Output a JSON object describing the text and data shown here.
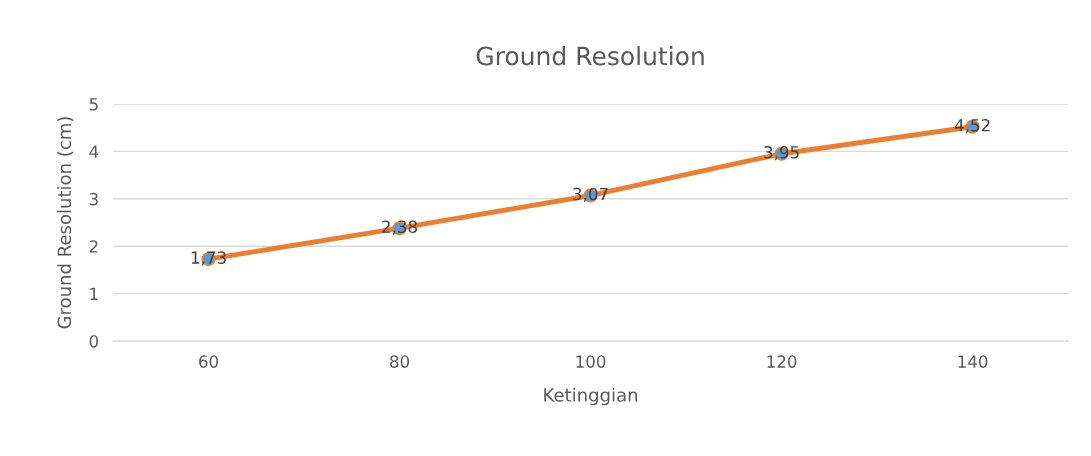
{
  "chart_data": {
    "type": "line",
    "title": "Ground Resolution",
    "xlabel": "Ketinggian",
    "ylabel": "Ground Resolution (cm)",
    "categories": [
      "60",
      "80",
      "100",
      "120",
      "140"
    ],
    "series": [
      {
        "color": "#ed7d31",
        "colors": [
          "#5b9bd5",
          "#5b9bd5",
          "#5b9bd5",
          "#5b9bd5",
          "#5b9bd5"
        ],
        "values": [
          1.73,
          2.38,
          3.07,
          3.95,
          4.52
        ],
        "value_labels": [
          "1,73",
          "2,38",
          "3,07",
          "3,95",
          "4,52"
        ]
      }
    ],
    "ylim": [
      0,
      5
    ],
    "yticks": [
      0,
      1,
      2,
      3,
      4,
      5
    ],
    "grid": "y",
    "marker": "circle",
    "line_style": "solid"
  }
}
